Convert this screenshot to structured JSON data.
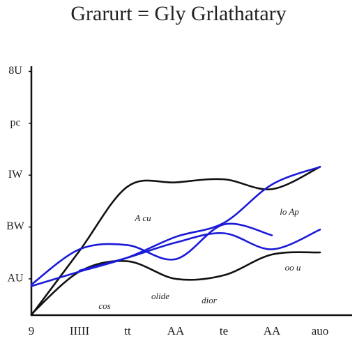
{
  "chart_data": {
    "type": "line",
    "title": "Grarurt = Gly Grlathatary",
    "categories": [
      "9",
      "IIIII",
      "tt",
      "AA",
      "te",
      "AA",
      "auo"
    ],
    "ylim": [
      0.3,
      5.1
    ],
    "yticks": [
      {
        "value": 1,
        "label": "AU"
      },
      {
        "value": 2,
        "label": "BW"
      },
      {
        "value": 3,
        "label": "IW"
      },
      {
        "value": 4,
        "label": "pc"
      },
      {
        "value": 5,
        "label": "8U"
      }
    ],
    "grid": false,
    "series": [
      {
        "color": "#111111",
        "values": [
          0.3,
          1.54,
          2.78,
          2.86,
          2.92,
          2.73,
          3.16
        ]
      },
      {
        "color": "#111111",
        "values": [
          0.32,
          1.14,
          1.34,
          1.0,
          1.07,
          1.47,
          1.51
        ]
      },
      {
        "color": "#1a1ad8",
        "values": [
          0.86,
          1.14,
          1.41,
          1.81,
          2.08,
          2.82,
          3.16
        ]
      },
      {
        "color": "#1a1ad8",
        "values": [
          0.89,
          1.57,
          1.65,
          1.38,
          2.05,
          1.84,
          null
        ]
      },
      {
        "color": "#1a1ad8",
        "values": [
          null,
          1.16,
          1.41,
          1.7,
          1.88,
          1.57,
          1.95
        ]
      }
    ],
    "annotations": [
      "A cu",
      "lo Ap",
      "olide",
      "dior",
      "cos",
      "oo u"
    ]
  }
}
